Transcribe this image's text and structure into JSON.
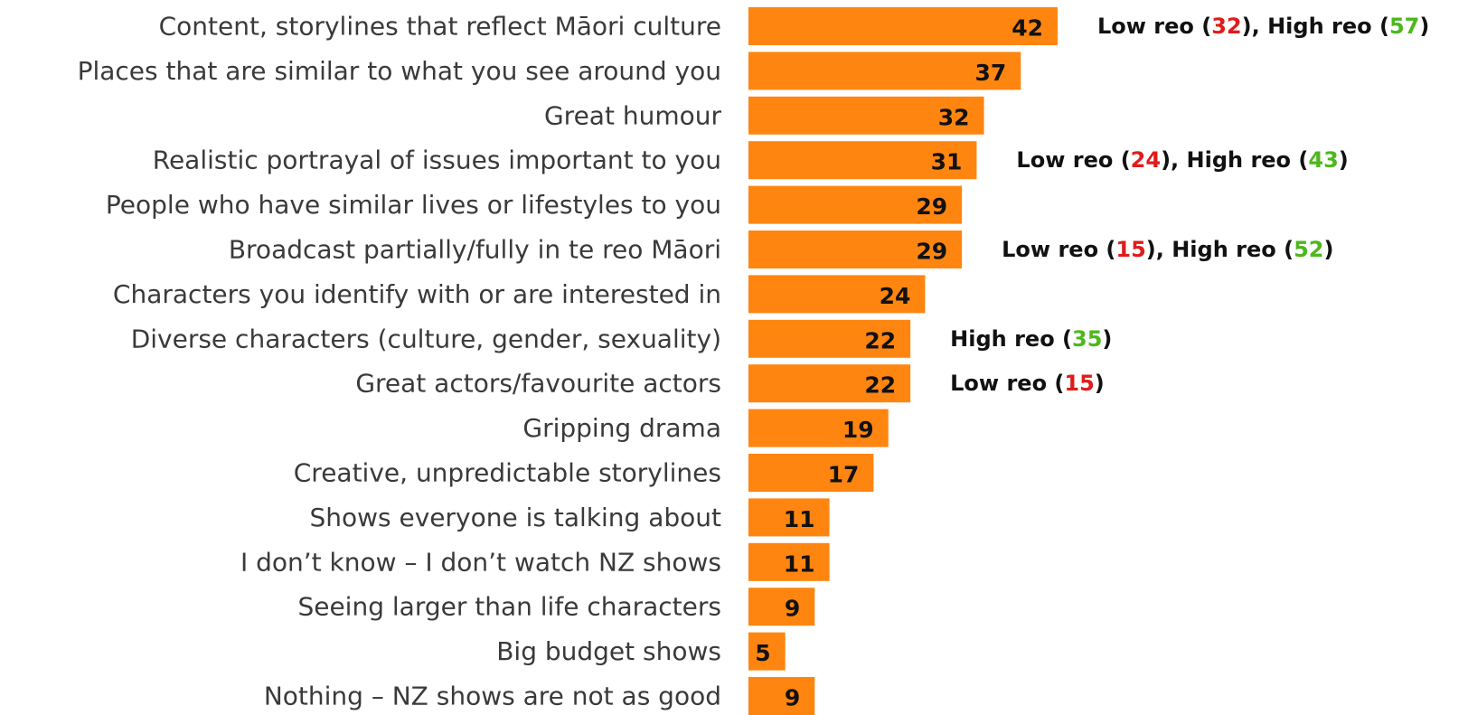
{
  "chart_data": {
    "type": "bar",
    "orientation": "horizontal",
    "categories": [
      "Content, storylines that reflect Māori culture",
      "Places that are similar to what you see around you",
      "Great humour",
      "Realistic portrayal of issues important to you",
      "People who have similar lives or lifestyles to you",
      "Broadcast partially/fully in te reo Māori",
      "Characters you identify with or are interested in",
      "Diverse characters (culture, gender, sexuality)",
      "Great actors/favourite actors",
      "Gripping drama",
      "Creative, unpredictable storylines",
      "Shows everyone is talking about",
      "I don’t know – I don’t watch NZ shows",
      "Seeing larger than life characters",
      "Big budget shows",
      "Nothing – NZ shows are not as good"
    ],
    "values": [
      42,
      37,
      32,
      31,
      29,
      29,
      24,
      22,
      22,
      19,
      17,
      11,
      11,
      9,
      5,
      9
    ],
    "bar_color": "#ff8511",
    "xlim": [
      0,
      42
    ],
    "grid": false,
    "legend": "none",
    "annotations": [
      {
        "row": 0,
        "parts": [
          {
            "text": "Low reo (",
            "style": "plain"
          },
          {
            "text": "32",
            "style": "low"
          },
          {
            "text": "), High reo (",
            "style": "plain"
          },
          {
            "text": "57",
            "style": "high"
          },
          {
            "text": ")",
            "style": "plain"
          }
        ]
      },
      {
        "row": 3,
        "parts": [
          {
            "text": "Low reo (",
            "style": "plain"
          },
          {
            "text": "24",
            "style": "low"
          },
          {
            "text": "), High reo (",
            "style": "plain"
          },
          {
            "text": "43",
            "style": "high"
          },
          {
            "text": ")",
            "style": "plain"
          }
        ]
      },
      {
        "row": 5,
        "parts": [
          {
            "text": "Low reo (",
            "style": "plain"
          },
          {
            "text": "15",
            "style": "low"
          },
          {
            "text": "), High reo (",
            "style": "plain"
          },
          {
            "text": "52",
            "style": "high"
          },
          {
            "text": ")",
            "style": "plain"
          }
        ]
      },
      {
        "row": 7,
        "parts": [
          {
            "text": "High reo (",
            "style": "plain"
          },
          {
            "text": "35",
            "style": "high"
          },
          {
            "text": ")",
            "style": "plain"
          }
        ]
      },
      {
        "row": 8,
        "parts": [
          {
            "text": "Low reo (",
            "style": "plain"
          },
          {
            "text": "15",
            "style": "low"
          },
          {
            "text": ")",
            "style": "plain"
          }
        ]
      }
    ],
    "colors": {
      "low": "#e01b1b",
      "high": "#4cb81c",
      "text": "#111111",
      "label": "#3a3a3a"
    }
  }
}
